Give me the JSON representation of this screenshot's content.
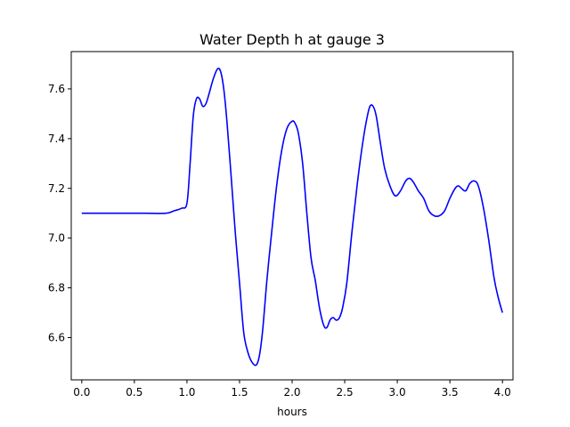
{
  "chart_data": {
    "type": "line",
    "title": "Water Depth h at gauge 3",
    "xlabel": "hours",
    "ylabel": "",
    "xlim": [
      -0.1,
      4.1
    ],
    "ylim": [
      6.43,
      7.75
    ],
    "grid": false,
    "xticks": [
      0.0,
      0.5,
      1.0,
      1.5,
      2.0,
      2.5,
      3.0,
      3.5,
      4.0
    ],
    "xtick_labels": [
      "0.0",
      "0.5",
      "1.0",
      "1.5",
      "2.0",
      "2.5",
      "3.0",
      "3.5",
      "4.0"
    ],
    "yticks": [
      6.6,
      6.8,
      7.0,
      7.2,
      7.4,
      7.6
    ],
    "ytick_labels": [
      "6.6",
      "6.8",
      "7.0",
      "7.2",
      "7.4",
      "7.6"
    ],
    "series": [
      {
        "color": "#0000ff",
        "x": [
          0.0,
          0.2,
          0.4,
          0.6,
          0.8,
          0.88,
          0.95,
          1.0,
          1.03,
          1.06,
          1.09,
          1.12,
          1.15,
          1.18,
          1.21,
          1.25,
          1.29,
          1.32,
          1.35,
          1.38,
          1.42,
          1.46,
          1.5,
          1.54,
          1.58,
          1.62,
          1.66,
          1.69,
          1.72,
          1.76,
          1.8,
          1.85,
          1.9,
          1.95,
          2.0,
          2.03,
          2.06,
          2.1,
          2.14,
          2.18,
          2.22,
          2.26,
          2.3,
          2.33,
          2.36,
          2.39,
          2.42,
          2.45,
          2.48,
          2.52,
          2.57,
          2.62,
          2.67,
          2.71,
          2.74,
          2.77,
          2.8,
          2.84,
          2.88,
          2.93,
          2.98,
          3.03,
          3.08,
          3.12,
          3.16,
          3.2,
          3.25,
          3.3,
          3.35,
          3.4,
          3.45,
          3.5,
          3.55,
          3.58,
          3.61,
          3.65,
          3.69,
          3.73,
          3.77,
          3.82,
          3.87,
          3.92,
          3.96,
          4.0
        ],
        "y": [
          7.1,
          7.1,
          7.1,
          7.1,
          7.1,
          7.11,
          7.12,
          7.14,
          7.3,
          7.49,
          7.56,
          7.56,
          7.53,
          7.54,
          7.58,
          7.64,
          7.68,
          7.67,
          7.6,
          7.47,
          7.25,
          7.02,
          6.82,
          6.62,
          6.54,
          6.5,
          6.49,
          6.53,
          6.63,
          6.83,
          7.0,
          7.2,
          7.35,
          7.44,
          7.47,
          7.46,
          7.42,
          7.3,
          7.1,
          6.92,
          6.83,
          6.72,
          6.65,
          6.64,
          6.67,
          6.68,
          6.67,
          6.68,
          6.72,
          6.82,
          7.03,
          7.22,
          7.38,
          7.48,
          7.53,
          7.53,
          7.49,
          7.38,
          7.28,
          7.21,
          7.17,
          7.19,
          7.23,
          7.24,
          7.22,
          7.19,
          7.16,
          7.11,
          7.09,
          7.09,
          7.11,
          7.16,
          7.2,
          7.21,
          7.2,
          7.19,
          7.22,
          7.23,
          7.21,
          7.12,
          6.99,
          6.84,
          6.76,
          6.7
        ]
      }
    ]
  }
}
